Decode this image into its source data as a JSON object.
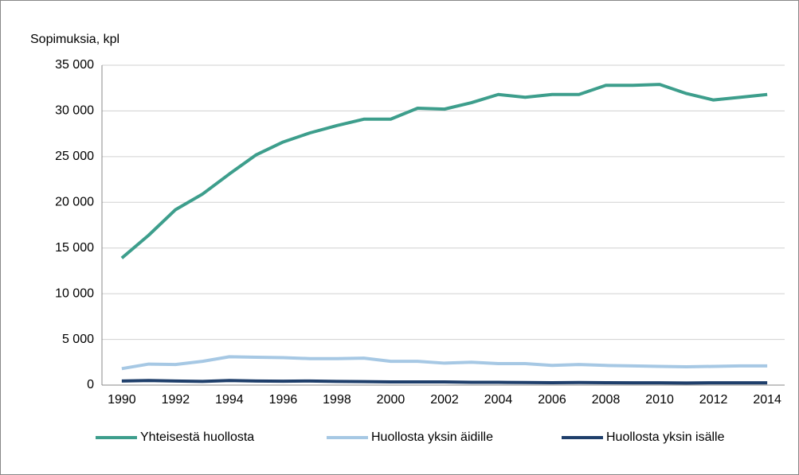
{
  "chart_data": {
    "type": "line",
    "y_axis_label": "Sopimuksia, kpl",
    "categories": [
      "1990",
      null,
      "1992",
      null,
      "1994",
      null,
      "1996",
      null,
      "1998",
      null,
      "2000",
      null,
      "2002",
      null,
      "2004",
      null,
      "2006",
      null,
      "2008",
      null,
      "2010",
      null,
      "2012",
      null,
      "2014"
    ],
    "series": [
      {
        "name": "Yhteisestä huollosta",
        "color": "#3d9e8c",
        "values": [
          13900,
          16400,
          19200,
          20900,
          23100,
          25200,
          26600,
          27600,
          28400,
          29100,
          29100,
          30300,
          30200,
          30900,
          31800,
          31500,
          31800,
          31800,
          32800,
          32800,
          32900,
          31900,
          31200,
          31500,
          31800
        ]
      },
      {
        "name": "Huollosta yksin äidille",
        "color": "#a6c8e4",
        "values": [
          1800,
          2300,
          2250,
          2600,
          3100,
          3050,
          3000,
          2900,
          2900,
          2950,
          2600,
          2600,
          2400,
          2500,
          2350,
          2350,
          2150,
          2250,
          2150,
          2100,
          2050,
          2000,
          2050,
          2100,
          2100
        ]
      },
      {
        "name": "Huollosta yksin isälle",
        "color": "#1f3f6b",
        "values": [
          450,
          500,
          450,
          400,
          500,
          450,
          420,
          450,
          400,
          380,
          350,
          350,
          350,
          300,
          300,
          280,
          260,
          280,
          260,
          250,
          250,
          230,
          250,
          250,
          250
        ]
      }
    ],
    "ylim": [
      0,
      35000
    ],
    "yticks": [
      0,
      {
        "value": 5000,
        "label": "5 000"
      },
      {
        "value": 10000,
        "label": "10 000"
      },
      {
        "value": 15000,
        "label": "15 000"
      },
      {
        "value": 20000,
        "label": "20 000"
      },
      {
        "value": 25000,
        "label": "25 000"
      },
      {
        "value": 30000,
        "label": "30 000"
      },
      {
        "value": 35000,
        "label": "35 000"
      }
    ],
    "grid": true,
    "legend": "bottom"
  }
}
